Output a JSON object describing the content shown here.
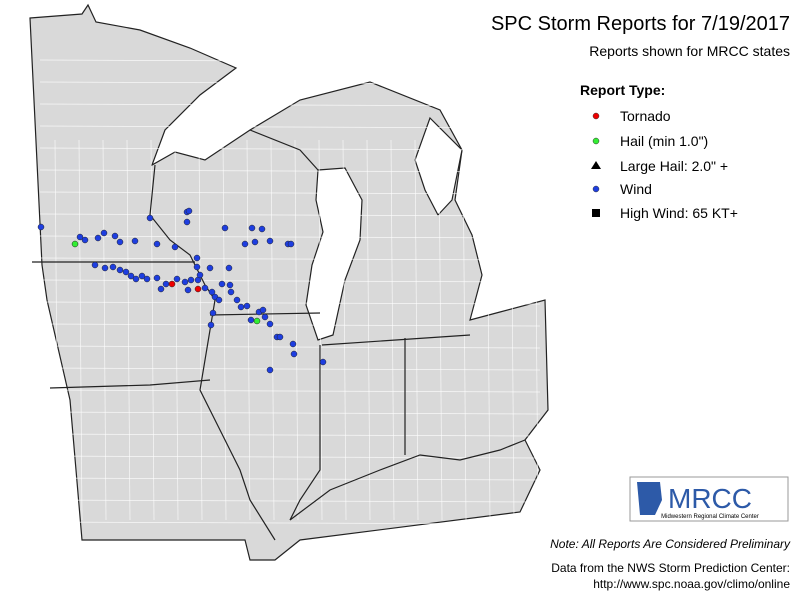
{
  "header": {
    "title": "SPC Storm Reports for 7/19/2017",
    "subtitle": "Reports shown for MRCC states"
  },
  "legend": {
    "title": "Report Type:",
    "items": [
      "Tornado",
      "Hail (min 1.0\")",
      "Large Hail: 2.0\" +",
      "Wind",
      "High Wind: 65 KT+"
    ]
  },
  "logo": {
    "name": "MRCC",
    "caption": "Midwestern Regional Climate Center"
  },
  "footer": {
    "note": "Note: All Reports Are Considered Preliminary",
    "source": [
      "Data from the NWS Storm Prediction Center:",
      "http://www.spc.noaa.gov/climo/online"
    ]
  }
}
